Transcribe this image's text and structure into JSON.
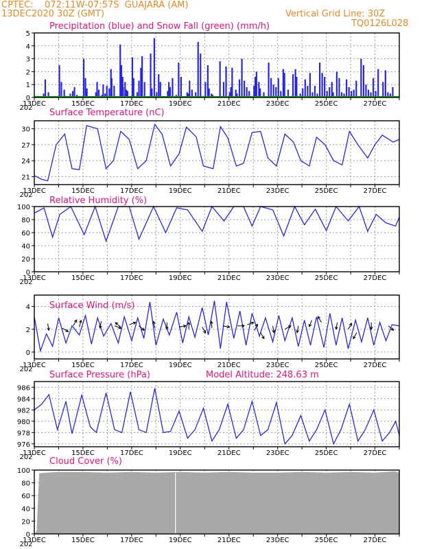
{
  "header": {
    "line1": "CPTEC:    072:11W-07:57S  GUAJARA (AM)",
    "line2_left": "13DEC2020 30Z (GMT)",
    "line2_right": "Vertical Grid Line: 30Z",
    "line3_right": "TQ0126L028"
  },
  "colors": {
    "header": "#e58a2c",
    "title": "#e0147c",
    "series": "#2727e0",
    "snow": "#1aa11a",
    "cloud": "#a8a8a8"
  },
  "days": [
    "13DEC",
    "15DEC",
    "17DEC",
    "19DEC",
    "21DEC",
    "23DEC",
    "25DEC",
    "27DEC"
  ],
  "year_fragment": "202",
  "chart_data": [
    {
      "type": "bar",
      "title": "Precipitation (blue) and Snow Fall (green) (mm/h)",
      "ylim": [
        0,
        5
      ],
      "yticks": [
        0,
        1,
        2,
        3,
        4,
        5
      ],
      "x_days": [
        0.35,
        0.42,
        0.55,
        1.0,
        1.08,
        1.2,
        1.45,
        1.55,
        1.62,
        1.72,
        2.0,
        2.07,
        2.13,
        2.5,
        2.55,
        2.62,
        2.75,
        2.8,
        2.88,
        2.95,
        3.05,
        3.12,
        3.15,
        3.25,
        3.5,
        3.55,
        3.6,
        3.62,
        3.7,
        3.75,
        3.8,
        4.0,
        4.05,
        4.2,
        4.27,
        4.35,
        4.4,
        4.5,
        4.75,
        4.8,
        4.9,
        5.0,
        5.08,
        5.15,
        5.45,
        5.5,
        5.55,
        5.65,
        5.8,
        5.9,
        6.0,
        6.25,
        6.3,
        6.35,
        6.45,
        6.6,
        6.7,
        6.8,
        7.0,
        7.1,
        7.15,
        7.25,
        7.3,
        7.6,
        7.75,
        7.85,
        8.0,
        8.05,
        8.1,
        8.25,
        8.3,
        8.4,
        8.5,
        8.6,
        8.7,
        8.8,
        9.0,
        9.05,
        9.1,
        9.2,
        9.25,
        9.4,
        9.6,
        9.7,
        9.8,
        9.9,
        10.0,
        10.1,
        10.2,
        10.25,
        10.4,
        10.6,
        10.7,
        10.75,
        10.9,
        11.0,
        11.1,
        11.2,
        11.3,
        11.4,
        11.5,
        11.6,
        11.7,
        11.8,
        11.9,
        12.0,
        12.1,
        12.2,
        12.25,
        12.4,
        12.5,
        12.6,
        12.7,
        12.8,
        12.9,
        13.0,
        13.1,
        13.2,
        13.4,
        13.5,
        13.6,
        13.7,
        13.8,
        13.9,
        14.0,
        14.1,
        14.3,
        14.4,
        14.5,
        14.6,
        14.7
      ],
      "precip": [
        0.3,
        1.4,
        0.4,
        2.5,
        1.2,
        0.6,
        0.3,
        0.5,
        0.8,
        0.2,
        3.0,
        1.5,
        0.7,
        0.4,
        1.2,
        0.6,
        0.2,
        1.0,
        0.3,
        0.9,
        0.7,
        2.2,
        1.5,
        0.9,
        4.1,
        2.5,
        1.6,
        0.8,
        1.2,
        0.6,
        0.5,
        3.1,
        1.5,
        0.4,
        1.3,
        2.3,
        3.2,
        1.2,
        3.4,
        0.7,
        4.6,
        0.4,
        1.8,
        1.2,
        0.5,
        1.2,
        0.8,
        1.5,
        0.2,
        2.7,
        1.6,
        0.4,
        0.3,
        1.3,
        0.6,
        0.4,
        4.3,
        3.4,
        1.2,
        2.5,
        0.7,
        0.3,
        0.2,
        2.8,
        1.2,
        2.4,
        0.4,
        0.8,
        2.3,
        0.6,
        0.3,
        1.4,
        3.0,
        1.3,
        0.8,
        0.5,
        0.9,
        1.6,
        2.0,
        1.2,
        0.7,
        0.4,
        2.7,
        1.5,
        1.0,
        0.8,
        1.5,
        0.5,
        2.2,
        1.9,
        0.6,
        1.8,
        2.2,
        1.6,
        0.3,
        0.7,
        1.4,
        0.9,
        1.9,
        0.4,
        0.9,
        0.3,
        2.7,
        1.9,
        1.6,
        0.5,
        0.8,
        1.2,
        0.4,
        2.0,
        1.5,
        0.4,
        0.3,
        1.4,
        0.8,
        0.5,
        0.6,
        1.3,
        3.0,
        2.5,
        1.0,
        0.6,
        0.4,
        1.5,
        0.5,
        2.2,
        1.2,
        2.1,
        0.4,
        0.3,
        0.8
      ]
    },
    {
      "type": "line",
      "title": "Surface Temperature (nC)",
      "ylim": [
        19.5,
        31.5
      ],
      "yticks": [
        21,
        24,
        27,
        30
      ],
      "x_days": [
        0,
        0.3,
        0.55,
        0.9,
        1.25,
        1.55,
        1.85,
        2.15,
        2.6,
        2.95,
        3.25,
        3.55,
        3.9,
        4.25,
        4.6,
        4.95,
        5.25,
        5.6,
        5.95,
        6.25,
        6.65,
        6.95,
        7.35,
        7.65,
        7.95,
        8.3,
        8.6,
        8.95,
        9.3,
        9.6,
        9.95,
        10.3,
        10.65,
        10.95,
        11.3,
        11.6,
        11.95,
        12.3,
        12.65,
        12.95,
        13.3,
        13.7,
        14.0,
        14.3,
        14.75,
        15.0
      ],
      "values": [
        21.2,
        20.5,
        20.2,
        27,
        29,
        22.5,
        22.3,
        30.6,
        30,
        22.5,
        24,
        29.5,
        28,
        22.5,
        24,
        30.8,
        29,
        23,
        25.3,
        30.3,
        28.5,
        23,
        22.5,
        30.4,
        28.3,
        23,
        23.5,
        29.3,
        29.5,
        24.5,
        23,
        29,
        27.5,
        24,
        23,
        28.4,
        27,
        24,
        23.2,
        29.5,
        27,
        24.5,
        27,
        28.8,
        27.5,
        28
      ]
    },
    {
      "type": "line",
      "title": "Relative Humidity (%)",
      "ylim": [
        0,
        100
      ],
      "yticks": [
        0,
        20,
        40,
        60,
        80,
        100
      ],
      "x_days": [
        0,
        0.4,
        0.75,
        1.05,
        1.5,
        2.05,
        2.5,
        2.95,
        3.45,
        3.9,
        4.3,
        4.9,
        5.4,
        5.85,
        6.3,
        6.9,
        7.3,
        7.8,
        8.2,
        8.6,
        8.95,
        9.3,
        9.8,
        10.25,
        10.7,
        11.1,
        11.55,
        12.0,
        12.4,
        12.9,
        13.35,
        13.7,
        14.05,
        14.45,
        14.85,
        15.0
      ],
      "values": [
        90,
        98,
        53,
        88,
        100,
        57,
        100,
        47,
        100,
        100,
        50,
        100,
        60,
        98,
        95,
        62,
        100,
        78,
        100,
        100,
        70,
        100,
        95,
        55,
        100,
        72,
        96,
        63,
        100,
        78,
        100,
        62,
        88,
        75,
        70,
        84
      ]
    },
    {
      "type": "line",
      "title": "Surface Wind (m/s)",
      "ylim": [
        -0.6,
        5.0
      ],
      "yticks": [
        0,
        2,
        4
      ],
      "x_days": [
        0,
        0.25,
        0.5,
        0.75,
        1.0,
        1.3,
        1.55,
        1.85,
        2.1,
        2.35,
        2.6,
        2.85,
        3.15,
        3.45,
        3.7,
        4.0,
        4.25,
        4.5,
        4.75,
        5.0,
        5.3,
        5.55,
        5.85,
        6.1,
        6.35,
        6.6,
        6.9,
        7.15,
        7.4,
        7.65,
        7.9,
        8.2,
        8.45,
        8.7,
        8.95,
        9.25,
        9.5,
        9.8,
        10.05,
        10.3,
        10.6,
        10.85,
        11.1,
        11.35,
        11.6,
        11.9,
        12.15,
        12.4,
        12.65,
        12.9,
        13.2,
        13.45,
        13.7,
        13.95,
        14.2,
        14.45,
        14.7,
        15.0
      ],
      "values": [
        3.1,
        0.1,
        1.6,
        0.5,
        3.0,
        0.8,
        2.3,
        1.5,
        3.2,
        0.7,
        3.0,
        1.4,
        2.5,
        0.8,
        3.1,
        1.0,
        3.0,
        1.2,
        4.4,
        0.6,
        2.9,
        1.5,
        3.5,
        0.8,
        3.1,
        1.3,
        3.9,
        1.5,
        4.5,
        0.3,
        4.4,
        1.2,
        3.6,
        0.6,
        3.4,
        1.4,
        3.0,
        0.9,
        3.2,
        1.0,
        3.0,
        0.5,
        2.8,
        0.6,
        3.1,
        0.4,
        3.4,
        0.6,
        3.0,
        0.3,
        2.8,
        0.9,
        3.0,
        0.6,
        2.6,
        1.0,
        2.4,
        2.3
      ],
      "vectors": [
        {
          "x": 0.55,
          "y": 2.5,
          "ang": -80
        },
        {
          "x": 1.15,
          "y": 2.1,
          "ang": -30
        },
        {
          "x": 1.6,
          "y": 2.3,
          "ang": 60
        },
        {
          "x": 1.85,
          "y": 2.2,
          "ang": 75
        },
        {
          "x": 2.75,
          "y": 2.7,
          "ang": -100
        },
        {
          "x": 3.3,
          "y": 2.3,
          "ang": -20
        },
        {
          "x": 3.55,
          "y": 2.2,
          "ang": 140
        },
        {
          "x": 3.9,
          "y": 2.4,
          "ang": 20
        },
        {
          "x": 4.3,
          "y": 2.3,
          "ang": -40
        },
        {
          "x": 4.95,
          "y": 2.1,
          "ang": 100
        },
        {
          "x": 5.45,
          "y": 2.6,
          "ang": -90
        },
        {
          "x": 5.95,
          "y": 2.2,
          "ang": 10
        },
        {
          "x": 6.35,
          "y": 2.0,
          "ang": 90
        },
        {
          "x": 6.9,
          "y": 2.2,
          "ang": -60
        },
        {
          "x": 7.3,
          "y": 2.1,
          "ang": 95
        },
        {
          "x": 7.75,
          "y": 2.3,
          "ang": -10
        },
        {
          "x": 8.35,
          "y": 2.3,
          "ang": 0
        },
        {
          "x": 8.75,
          "y": 2.4,
          "ang": 20
        },
        {
          "x": 9.05,
          "y": 1.9,
          "ang": 65
        },
        {
          "x": 9.3,
          "y": 1.7,
          "ang": -60
        },
        {
          "x": 9.8,
          "y": 2.3,
          "ang": -80
        },
        {
          "x": 10.3,
          "y": 2.0,
          "ang": 30
        },
        {
          "x": 10.85,
          "y": 2.3,
          "ang": -100
        },
        {
          "x": 11.4,
          "y": 2.8,
          "ang": -110
        },
        {
          "x": 11.8,
          "y": 2.6,
          "ang": 120
        },
        {
          "x": 12.45,
          "y": 2.6,
          "ang": -100
        },
        {
          "x": 12.9,
          "y": 2.0,
          "ang": 60
        },
        {
          "x": 13.25,
          "y": 1.7,
          "ang": -120
        },
        {
          "x": 13.85,
          "y": 2.6,
          "ang": -90
        },
        {
          "x": 14.55,
          "y": 2.3,
          "ang": -40
        }
      ]
    },
    {
      "type": "line",
      "title": "Surface Pressure (hPa)",
      "annotation": "Model Altitude: 248.63 m",
      "ylim": [
        975.5,
        987
      ],
      "yticks": [
        976,
        978,
        980,
        982,
        984,
        986
      ],
      "x_days": [
        0,
        0.3,
        0.6,
        0.95,
        1.3,
        1.55,
        1.95,
        2.3,
        2.55,
        2.95,
        3.3,
        3.6,
        3.95,
        4.3,
        4.6,
        4.95,
        5.3,
        5.6,
        5.95,
        6.3,
        6.6,
        6.95,
        7.3,
        7.6,
        7.95,
        8.3,
        8.6,
        8.95,
        9.3,
        9.6,
        9.95,
        10.3,
        10.6,
        10.95,
        11.3,
        11.6,
        11.95,
        12.3,
        12.6,
        12.95,
        13.3,
        13.6,
        13.95,
        14.3,
        14.6,
        14.85,
        15.0
      ],
      "values": [
        982,
        983,
        984.7,
        978.5,
        983.5,
        977.8,
        984.6,
        979,
        978,
        985,
        978.5,
        978,
        985.2,
        978.5,
        978,
        985.8,
        978,
        978.2,
        981.8,
        977,
        978.5,
        982.3,
        976.5,
        978.5,
        983,
        977,
        978.5,
        983.5,
        977.5,
        978.5,
        983.3,
        976,
        977.5,
        981,
        976.5,
        978.5,
        982,
        976,
        978.5,
        983,
        976.5,
        978.5,
        982,
        976.5,
        978,
        980,
        977.5
      ]
    },
    {
      "type": "area",
      "title": "Cloud Cover (%)",
      "ylim": [
        0,
        100
      ],
      "yticks": [
        0,
        20,
        40,
        60,
        80,
        100
      ],
      "x_days": [
        0,
        0.1,
        0.2,
        0.5,
        1.0,
        2.0,
        3.0,
        4.0,
        5.0,
        6.0,
        7.0,
        8.0,
        9.0,
        10.0,
        11.0,
        12.0,
        13.0,
        14.0,
        14.8,
        15.0
      ],
      "values": [
        0,
        5,
        95,
        96,
        97,
        97,
        96,
        97,
        96,
        97,
        96,
        97,
        96,
        96,
        97,
        96,
        97,
        96,
        98,
        96
      ]
    }
  ]
}
